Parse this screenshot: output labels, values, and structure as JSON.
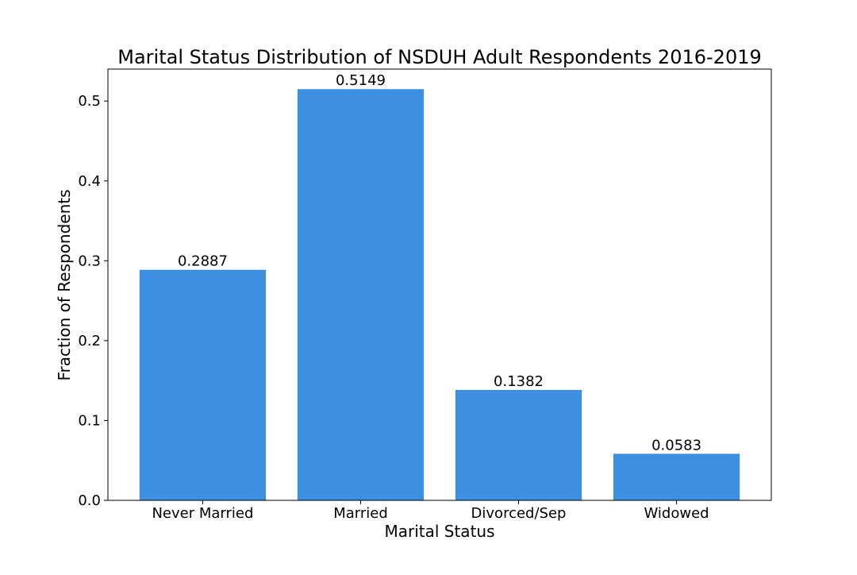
{
  "chart_data": {
    "type": "bar",
    "title": "Marital Status Distribution of NSDUH Adult Respondents 2016-2019",
    "xlabel": "Marital Status",
    "ylabel": "Fraction of Respondents",
    "categories": [
      "Never Married",
      "Married",
      "Divorced/Sep",
      "Widowed"
    ],
    "values": [
      0.2887,
      0.5149,
      0.1382,
      0.0583
    ],
    "data_labels": [
      "0.2887",
      "0.5149",
      "0.1382",
      "0.0583"
    ],
    "ylim": [
      0,
      0.54
    ],
    "yticks": [
      0.0,
      0.1,
      0.2,
      0.3,
      0.4,
      0.5
    ],
    "ytick_labels": [
      "0.0",
      "0.1",
      "0.2",
      "0.3",
      "0.4",
      "0.5"
    ],
    "grid": false,
    "legend": "none",
    "bar_color": "#3d8fe1"
  }
}
